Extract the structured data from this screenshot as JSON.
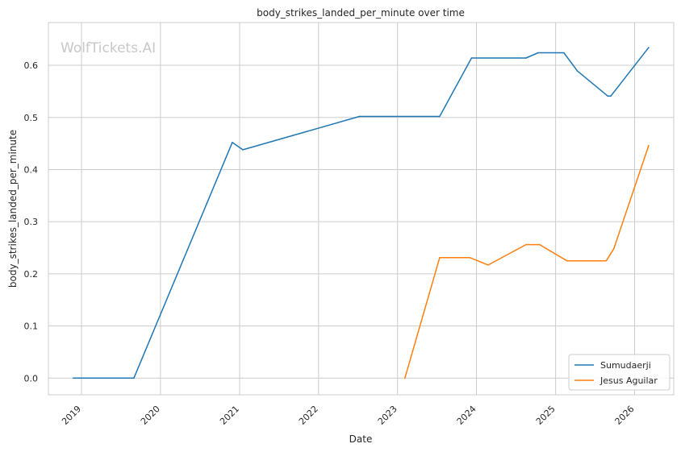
{
  "watermark": "WolfTickets.AI",
  "chart_data": {
    "type": "line",
    "title": "body_strikes_landed_per_minute over time",
    "xlabel": "Date",
    "ylabel": "body_strikes_landed_per_minute",
    "x_ticks": [
      "2019",
      "2020",
      "2021",
      "2022",
      "2023",
      "2024",
      "2025",
      "2026"
    ],
    "y_ticks": [
      "0.0",
      "0.1",
      "0.2",
      "0.3",
      "0.4",
      "0.5",
      "0.6"
    ],
    "xlim": [
      "2018-08-01",
      "2026-07-01"
    ],
    "ylim": [
      -0.032,
      0.682
    ],
    "grid": true,
    "legend_position": "lower right",
    "series": [
      {
        "name": "Sumudaerji",
        "color": "#1f77b4",
        "points": [
          {
            "x": "2018-11-24",
            "y": 0.0
          },
          {
            "x": "2019-08-31",
            "y": 0.0
          },
          {
            "x": "2020-11-28",
            "y": 0.452
          },
          {
            "x": "2021-01-16",
            "y": 0.438
          },
          {
            "x": "2022-07-09",
            "y": 0.502
          },
          {
            "x": "2023-07-15",
            "y": 0.502
          },
          {
            "x": "2023-12-09",
            "y": 0.614
          },
          {
            "x": "2024-08-17",
            "y": 0.614
          },
          {
            "x": "2024-10-12",
            "y": 0.624
          },
          {
            "x": "2025-02-08",
            "y": 0.624
          },
          {
            "x": "2025-04-12",
            "y": 0.589
          },
          {
            "x": "2025-08-30",
            "y": 0.541
          },
          {
            "x": "2025-09-13",
            "y": 0.541
          },
          {
            "x": "2026-03-07",
            "y": 0.634
          }
        ]
      },
      {
        "name": "Jesus Aguilar",
        "color": "#ff7f0e",
        "points": [
          {
            "x": "2023-02-04",
            "y": 0.0
          },
          {
            "x": "2023-07-15",
            "y": 0.231
          },
          {
            "x": "2023-12-02",
            "y": 0.231
          },
          {
            "x": "2024-02-24",
            "y": 0.217
          },
          {
            "x": "2024-08-17",
            "y": 0.256
          },
          {
            "x": "2024-10-19",
            "y": 0.256
          },
          {
            "x": "2025-02-22",
            "y": 0.225
          },
          {
            "x": "2025-08-23",
            "y": 0.225
          },
          {
            "x": "2025-09-27",
            "y": 0.248
          },
          {
            "x": "2026-03-07",
            "y": 0.446
          }
        ]
      }
    ]
  }
}
